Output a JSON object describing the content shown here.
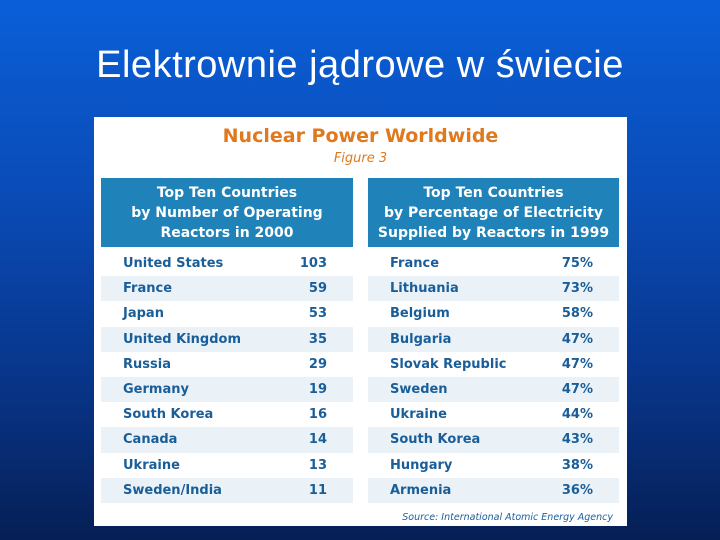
{
  "slide": {
    "title": "Elektrownie jądrowe w świecie"
  },
  "figure": {
    "title": "Nuclear Power Worldwide",
    "subtitle": "Figure 3",
    "source": "Source: International Atomic Energy Agency",
    "left": {
      "header": "Top Ten Countries\nby Number of Operating\nReactors in 2000",
      "rows": [
        {
          "country": "United States",
          "value": "103"
        },
        {
          "country": "France",
          "value": "59"
        },
        {
          "country": "Japan",
          "value": "53"
        },
        {
          "country": "United Kingdom",
          "value": "35"
        },
        {
          "country": "Russia",
          "value": "29"
        },
        {
          "country": "Germany",
          "value": "19"
        },
        {
          "country": "South Korea",
          "value": "16"
        },
        {
          "country": "Canada",
          "value": "14"
        },
        {
          "country": "Ukraine",
          "value": "13"
        },
        {
          "country": "Sweden/India",
          "value": "11"
        }
      ]
    },
    "right": {
      "header": "Top Ten Countries\nby Percentage of Electricity\nSupplied by Reactors in 1999",
      "rows": [
        {
          "country": "France",
          "value": "75%"
        },
        {
          "country": "Lithuania",
          "value": "73%"
        },
        {
          "country": "Belgium",
          "value": "58%"
        },
        {
          "country": "Bulgaria",
          "value": "47%"
        },
        {
          "country": "Slovak Republic",
          "value": "47%"
        },
        {
          "country": "Sweden",
          "value": "47%"
        },
        {
          "country": "Ukraine",
          "value": "44%"
        },
        {
          "country": "South Korea",
          "value": "43%"
        },
        {
          "country": "Hungary",
          "value": "38%"
        },
        {
          "country": "Armenia",
          "value": "36%"
        }
      ]
    }
  },
  "colors": {
    "accent_orange": "#e0791e",
    "header_blue": "#1f82b8",
    "text_blue": "#1a5e99",
    "row_alt": "#eaf2f8"
  }
}
